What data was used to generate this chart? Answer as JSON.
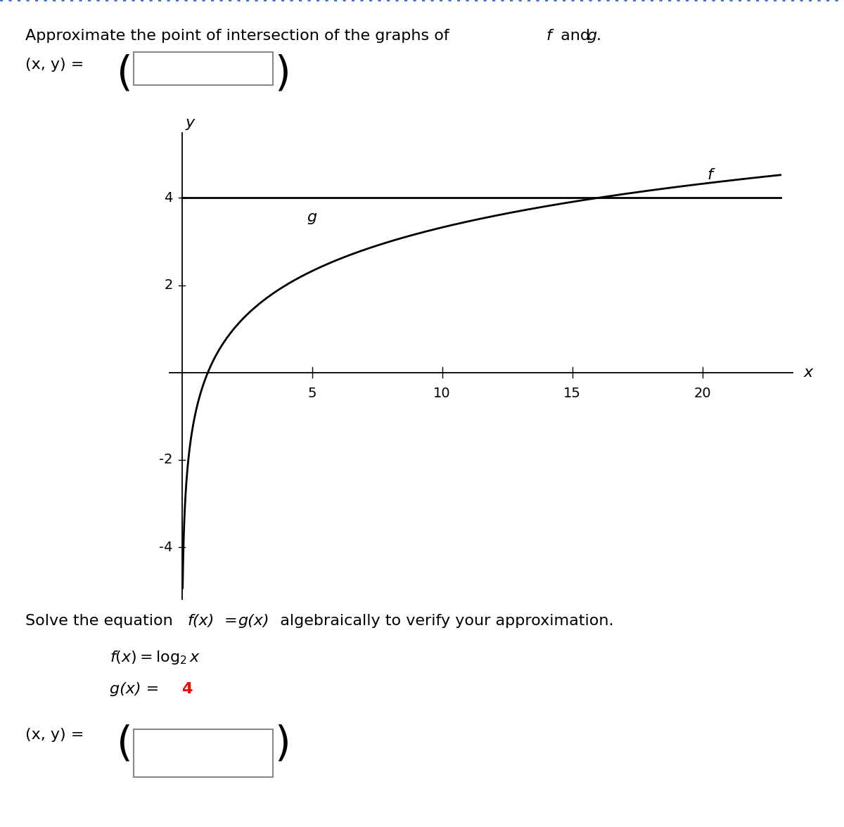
{
  "xlabel": "x",
  "ylabel": "y",
  "xlim": [
    -0.5,
    23.5
  ],
  "ylim": [
    -5.2,
    5.5
  ],
  "xticks": [
    5,
    10,
    15,
    20
  ],
  "yticks": [
    -4,
    -2,
    2
  ],
  "f_label": "f",
  "g_label": "g",
  "x_start": 0.025,
  "x_end": 23,
  "g_value": 4,
  "background_color": "#ffffff",
  "line_color": "#000000",
  "border_top_color": "#4472c4",
  "tick_label_fontsize": 14,
  "axis_label_fontsize": 16,
  "curve_linewidth": 2.0,
  "formula_gx_color": "#ff0000"
}
